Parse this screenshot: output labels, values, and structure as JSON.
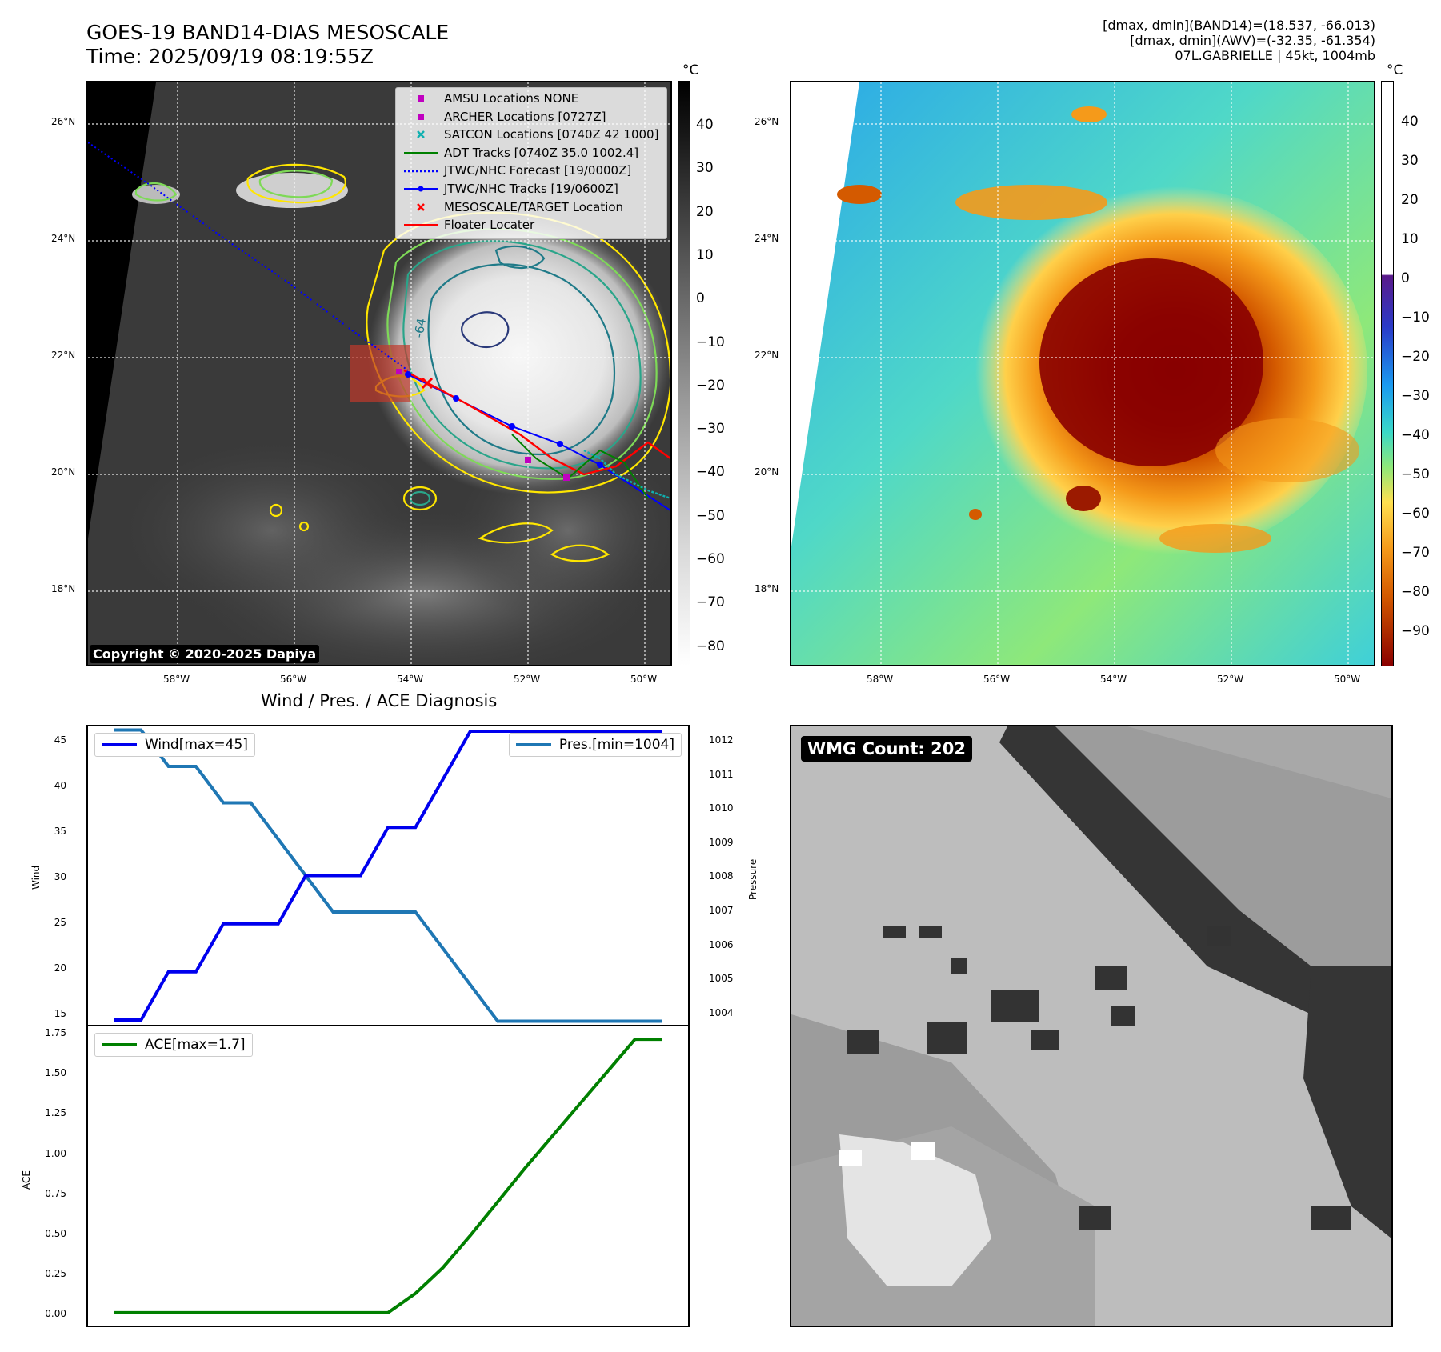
{
  "header": {
    "title_line1": "GOES-19 BAND14-DIAS MESOSCALE",
    "title_line2": "Time: 2025/09/19 08:19:55Z",
    "info_line1": "[dmax, dmin](BAND14)=(18.537, -66.013)",
    "info_line2": "[dmax, dmin](AWV)=(-32.35, -61.354)",
    "info_line3": "07L.GABRIELLE | 45kt, 1004mb"
  },
  "map_left": {
    "lat_labels": [
      "26°N",
      "24°N",
      "22°N",
      "20°N",
      "18°N"
    ],
    "lon_labels": [
      "58°W",
      "56°W",
      "54°W",
      "52°W",
      "50°W"
    ],
    "legend": [
      {
        "label": "AMSU Locations NONE",
        "color": "#c000c0",
        "marker": "square"
      },
      {
        "label": "ARCHER Locations [0727Z]",
        "color": "#c000c0",
        "marker": "square"
      },
      {
        "label": "SATCON Locations [0740Z 42 1000]",
        "color": "#10b0b0",
        "marker": "x"
      },
      {
        "label": "ADT Tracks [0740Z 35.0 1002.4]",
        "color": "#008000",
        "marker": "line"
      },
      {
        "label": "JTWC/NHC Forecast [19/0000Z]",
        "color": "#0000ff",
        "marker": "dotted"
      },
      {
        "label": "JTWC/NHC Tracks [19/0600Z]",
        "color": "#0000ff",
        "marker": "line-dot"
      },
      {
        "label": "MESOSCALE/TARGET Location",
        "color": "#ff0000",
        "marker": "x"
      },
      {
        "label": "Floater Locater",
        "color": "#ff0000",
        "marker": "line"
      }
    ],
    "contour_label": "-64",
    "copyright": "Copyright © 2020-2025 Dapiya",
    "colorbar_unit": "°C",
    "colorbar_ticks": [
      "40",
      "30",
      "20",
      "10",
      "0",
      "−10",
      "−20",
      "−30",
      "−40",
      "−50",
      "−60",
      "−70",
      "−80"
    ]
  },
  "map_right": {
    "lat_labels": [
      "26°N",
      "24°N",
      "22°N",
      "20°N",
      "18°N"
    ],
    "lon_labels": [
      "58°W",
      "56°W",
      "54°W",
      "52°W",
      "50°W"
    ],
    "colorbar_unit": "°C",
    "colorbar_ticks": [
      "40",
      "30",
      "20",
      "10",
      "0",
      "−10",
      "−20",
      "−30",
      "−40",
      "−50",
      "−60",
      "−70",
      "−80",
      "−90"
    ]
  },
  "diagnosis": {
    "title": "Wind / Pres. / ACE Diagnosis",
    "wind_legend": "Wind[max=45]",
    "pres_legend": "Pres.[min=1004]",
    "ace_legend": "ACE[max=1.7]",
    "wind_axis_label": "Wind",
    "pres_axis_label": "Pressure",
    "ace_axis_label": "ACE",
    "wind_ticks": [
      "45",
      "40",
      "35",
      "30",
      "25",
      "20",
      "15"
    ],
    "pres_ticks": [
      "1012",
      "1011",
      "1010",
      "1009",
      "1008",
      "1007",
      "1006",
      "1005",
      "1004"
    ],
    "ace_ticks": [
      "1.75",
      "1.50",
      "1.25",
      "1.00",
      "0.75",
      "0.50",
      "0.25",
      "0.00"
    ]
  },
  "wmg": {
    "label": "WMG Count: 202"
  },
  "colors": {
    "wind": "#0000ee",
    "pressure": "#1f77b4",
    "ace": "#008000"
  },
  "chart_data": [
    {
      "type": "line",
      "title": "Wind / Pres. / ACE Diagnosis",
      "x": [
        0,
        1,
        2,
        3,
        4,
        5,
        6,
        7,
        8,
        9,
        10,
        11,
        12,
        13,
        14,
        15,
        16,
        17,
        18,
        19,
        20
      ],
      "series": [
        {
          "name": "Wind[max=45]",
          "axis": "left",
          "values": [
            15,
            15,
            20,
            20,
            25,
            25,
            25,
            30,
            30,
            30,
            35,
            35,
            40,
            45,
            45,
            45,
            45,
            45,
            45,
            45,
            45
          ]
        },
        {
          "name": "Pres.[min=1004]",
          "axis": "right",
          "values": [
            1012,
            1012,
            1011,
            1011,
            1010,
            1010,
            1009,
            1008,
            1007,
            1007,
            1007,
            1007,
            1006,
            1005,
            1004,
            1004,
            1004,
            1004,
            1004,
            1004,
            1004
          ]
        }
      ],
      "ylabel": "Wind",
      "ylim": [
        14.5,
        45.5
      ],
      "y2label": "Pressure",
      "y2lim": [
        1003.9,
        1012.1
      ],
      "legend": [
        "top-left",
        "top-right"
      ]
    },
    {
      "type": "line",
      "x": [
        0,
        1,
        2,
        3,
        4,
        5,
        6,
        7,
        8,
        9,
        10,
        11,
        12,
        13,
        14,
        15,
        16,
        17,
        18,
        19,
        20
      ],
      "series": [
        {
          "name": "ACE[max=1.7]",
          "values": [
            0,
            0,
            0,
            0,
            0,
            0,
            0,
            0,
            0,
            0,
            0,
            0.12,
            0.28,
            0.48,
            0.69,
            0.9,
            1.1,
            1.3,
            1.5,
            1.7,
            1.7
          ]
        }
      ],
      "ylabel": "ACE",
      "ylim": [
        -0.08,
        1.78
      ],
      "legend": "top-left"
    }
  ]
}
